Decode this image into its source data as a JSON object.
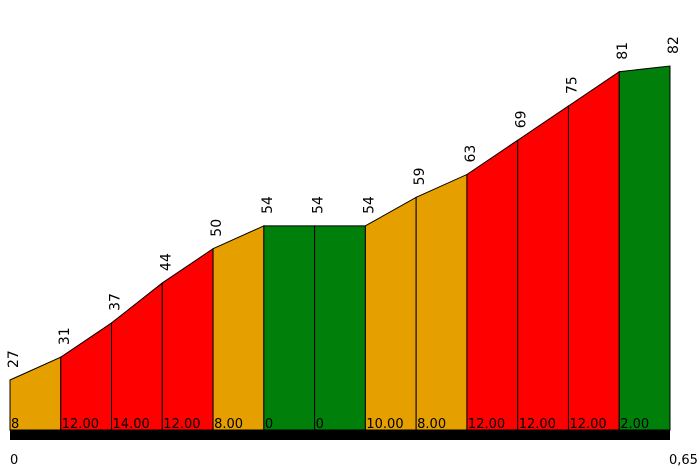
{
  "chart_data": {
    "type": "area",
    "title": "",
    "xlabel": "",
    "ylabel": "",
    "x_start_label": "0",
    "x_end_label": "0,65",
    "elevations": [
      27,
      31,
      37,
      44,
      50,
      54,
      54,
      54,
      59,
      63,
      69,
      75,
      81,
      82
    ],
    "grades": [
      "8",
      "12.00",
      "14.00",
      "12.00",
      "8.00",
      "0",
      "0",
      "10.00",
      "8.00",
      "12.00",
      "12.00",
      "12.00",
      "2.00"
    ],
    "grade_values": [
      8,
      12,
      14,
      12,
      8,
      0,
      0,
      10,
      8,
      12,
      12,
      12,
      2
    ],
    "grade_colors": {
      "low": "#00800a",
      "medium": "#e5a000",
      "high": "#ff0000"
    },
    "ylim": [
      20,
      85
    ],
    "grid": false,
    "legend": "none"
  }
}
